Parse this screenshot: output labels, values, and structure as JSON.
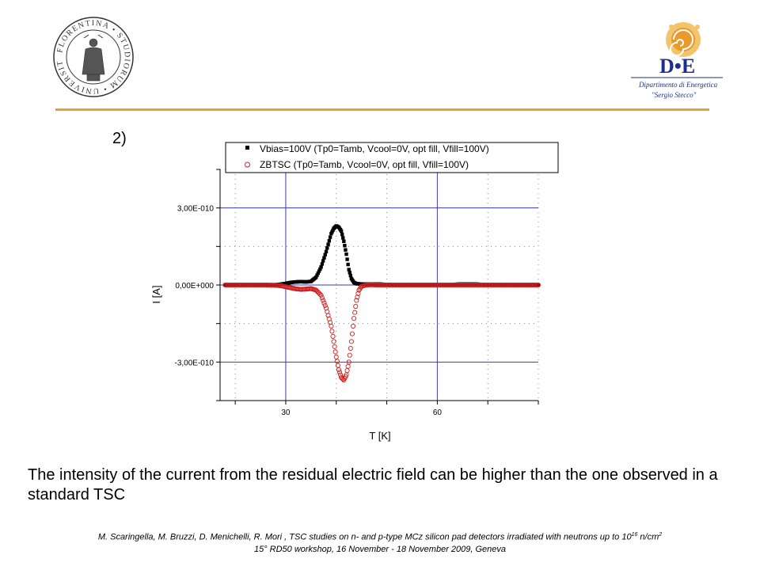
{
  "slide": {
    "number_label": "2)",
    "body_text": "The intensity of the current from the residual electric field can be higher than the one observed in a standard TSC",
    "footer": {
      "line1_before": "M. Scaringella, M. Bruzzi, D. Menichelli, R. Mori , TSC studies on n- and p-type MCz silicon pad detectors irradiated with neutrons up to 10",
      "line1_exp": "16",
      "line1_mid": " n/cm",
      "line1_exp2": "2",
      "line2": "15° RD50 workshop, 16 November - 18 November 2009, Geneva"
    }
  },
  "logos": {
    "left": {
      "text": "FLORENTINA • STUDIORUM • UNIVERSITAS"
    },
    "right": {
      "main": "D•E",
      "sub1": "Dipartimento di Energetica",
      "sub2": "\"Sergio Stecco\""
    }
  },
  "colors": {
    "divider": "#e3a33a",
    "grid": "#3a3ab8",
    "series_vbias": "#000000",
    "series_zbtsc": "#cc1f1f"
  },
  "chart_data": {
    "type": "scatter",
    "title": "",
    "xlabel": "T   [K]",
    "ylabel": "I   [A]",
    "xlim": [
      17,
      80
    ],
    "ylim": [
      -4.5e-10,
      4.5e-10
    ],
    "x_ticks": [
      30,
      60
    ],
    "x_tick_labels": [
      "30",
      "60"
    ],
    "y_ticks": [
      3e-10,
      0,
      -3e-10
    ],
    "y_tick_labels": [
      "3,00E-010",
      "0,00E+000",
      "-3,00E-010"
    ],
    "grid": true,
    "legend_position": "top",
    "series": [
      {
        "name": "Vbias=100V (Tp0=Tamb, Vcool=0V, opt fill, Vfill=100V)",
        "marker": "square-filled",
        "color": "#000000",
        "points": [
          [
            18,
            0
          ],
          [
            20,
            0
          ],
          [
            22,
            0
          ],
          [
            24,
            0
          ],
          [
            26,
            0
          ],
          [
            28,
            1e-12
          ],
          [
            29,
            3e-12
          ],
          [
            30,
            6e-12
          ],
          [
            31,
            1e-11
          ],
          [
            32,
            1.2e-11
          ],
          [
            33,
            1.3e-11
          ],
          [
            34,
            1.2e-11
          ],
          [
            35,
            1.4e-11
          ],
          [
            36,
            3e-11
          ],
          [
            37,
            7e-11
          ],
          [
            38,
            1.3e-10
          ],
          [
            39,
            2e-10
          ],
          [
            39.5,
            2.2e-10
          ],
          [
            40,
            2.3e-10
          ],
          [
            40.5,
            2.25e-10
          ],
          [
            41,
            2.1e-10
          ],
          [
            41.5,
            1.7e-10
          ],
          [
            42,
            1.2e-10
          ],
          [
            42.5,
            6e-11
          ],
          [
            43,
            2.5e-11
          ],
          [
            43.5,
            1e-11
          ],
          [
            44,
            5e-12
          ],
          [
            45,
            4e-12
          ],
          [
            46,
            4e-12
          ],
          [
            47,
            4e-12
          ],
          [
            48,
            4e-12
          ],
          [
            49,
            3e-12
          ],
          [
            50,
            2e-12
          ],
          [
            51,
            1e-12
          ],
          [
            52,
            0
          ],
          [
            54,
            0
          ],
          [
            56,
            0
          ],
          [
            58,
            0
          ],
          [
            60,
            0
          ],
          [
            62,
            1e-12
          ],
          [
            64,
            3e-12
          ],
          [
            66,
            4e-12
          ],
          [
            68,
            3e-12
          ],
          [
            70,
            1e-12
          ],
          [
            72,
            0
          ],
          [
            74,
            0
          ],
          [
            76,
            0
          ],
          [
            78,
            0
          ],
          [
            80,
            0
          ]
        ]
      },
      {
        "name": "ZBTSC (Tp0=Tamb, Vcool=0V, opt fill, Vfill=100V)",
        "marker": "circle-open",
        "color": "#cc1f1f",
        "points": [
          [
            18,
            0
          ],
          [
            20,
            0
          ],
          [
            22,
            0
          ],
          [
            24,
            0
          ],
          [
            26,
            0
          ],
          [
            28,
            -1e-12
          ],
          [
            29,
            -3e-12
          ],
          [
            30,
            -7e-12
          ],
          [
            31,
            -1.1e-11
          ],
          [
            32,
            -1.5e-11
          ],
          [
            33,
            -1.7e-11
          ],
          [
            34,
            -1.6e-11
          ],
          [
            35,
            -1.4e-11
          ],
          [
            36,
            -2e-11
          ],
          [
            37,
            -4e-11
          ],
          [
            38,
            -9e-11
          ],
          [
            39,
            -1.6e-10
          ],
          [
            39.5,
            -2.2e-10
          ],
          [
            40,
            -2.8e-10
          ],
          [
            40.5,
            -3.3e-10
          ],
          [
            41,
            -3.6e-10
          ],
          [
            41.5,
            -3.7e-10
          ],
          [
            42,
            -3.5e-10
          ],
          [
            42.5,
            -3e-10
          ],
          [
            43,
            -2.2e-10
          ],
          [
            43.5,
            -1.3e-10
          ],
          [
            44,
            -6e-11
          ],
          [
            44.5,
            -2e-11
          ],
          [
            45,
            -5e-12
          ],
          [
            46,
            0
          ],
          [
            47,
            1e-12
          ],
          [
            48,
            0
          ],
          [
            50,
            0
          ],
          [
            52,
            0
          ],
          [
            54,
            0
          ],
          [
            56,
            0
          ],
          [
            58,
            0
          ],
          [
            60,
            0
          ],
          [
            62,
            0
          ],
          [
            64,
            0
          ],
          [
            66,
            0
          ],
          [
            68,
            0
          ],
          [
            70,
            0
          ],
          [
            72,
            0
          ],
          [
            74,
            0
          ],
          [
            76,
            0
          ],
          [
            78,
            0
          ],
          [
            80,
            0
          ]
        ]
      }
    ]
  }
}
